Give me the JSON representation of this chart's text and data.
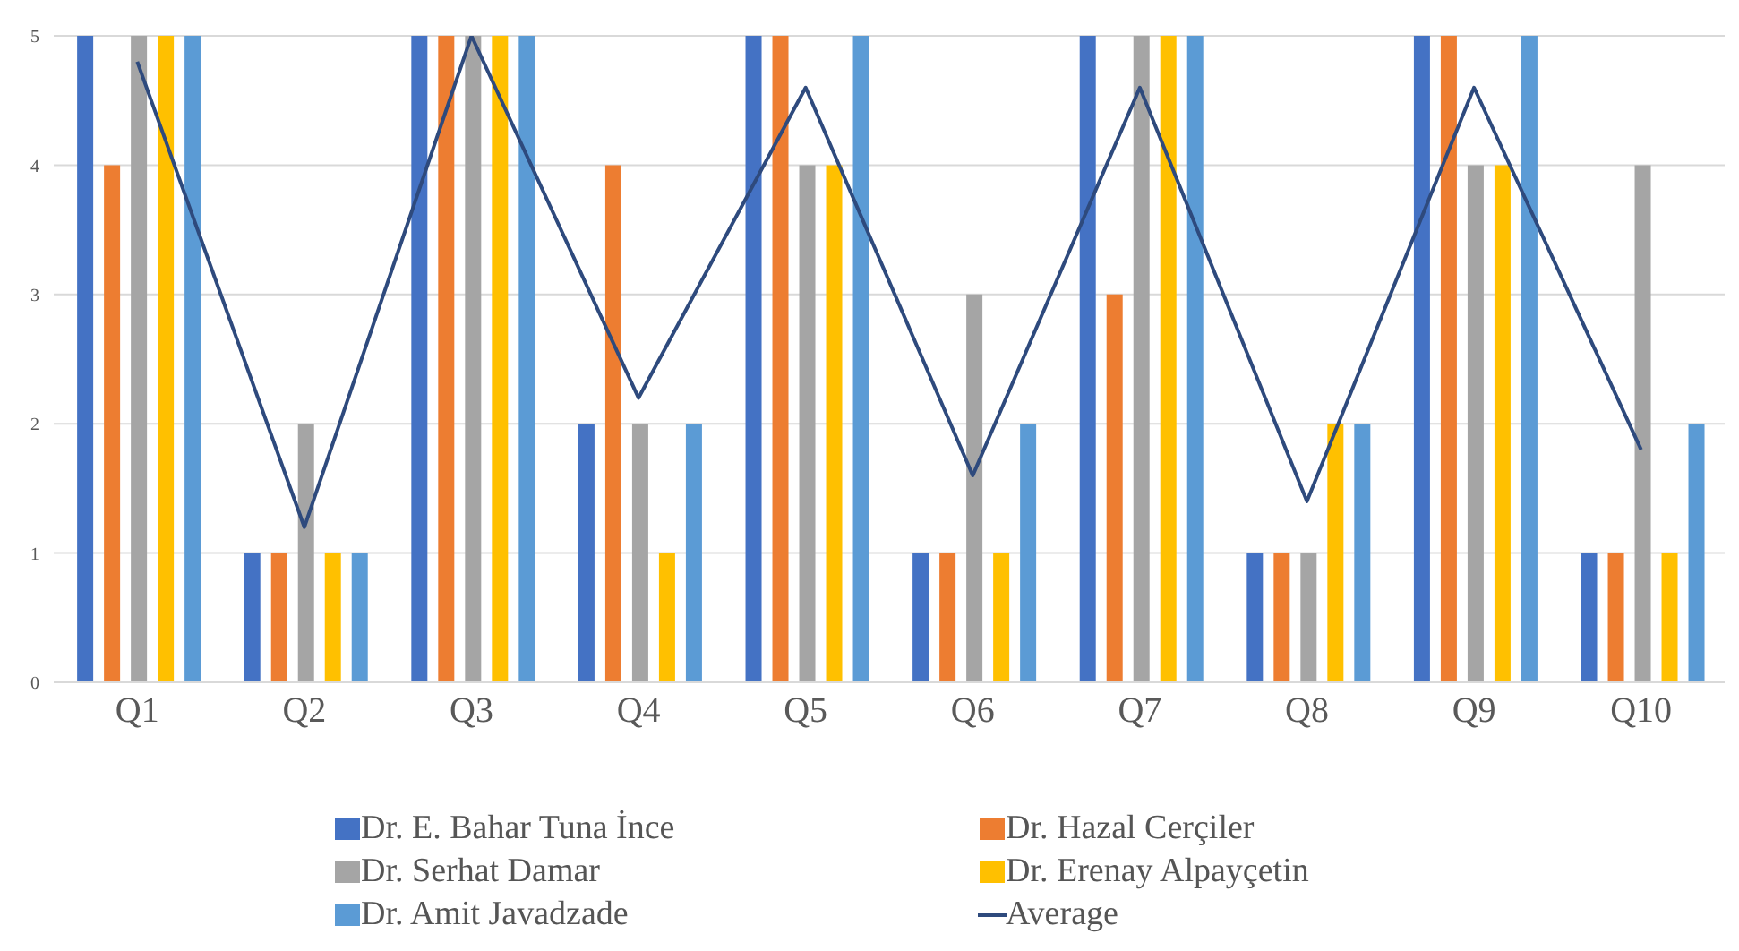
{
  "chart_data": {
    "type": "bar",
    "categories": [
      "Q1",
      "Q2",
      "Q3",
      "Q4",
      "Q5",
      "Q6",
      "Q7",
      "Q8",
      "Q9",
      "Q10"
    ],
    "series": [
      {
        "name": "Dr. E. Bahar Tuna İnce",
        "color": "#4472c4",
        "values": [
          5,
          1,
          5,
          2,
          5,
          1,
          5,
          1,
          5,
          1
        ]
      },
      {
        "name": "Dr. Hazal Cerçiler",
        "color": "#ed7d31",
        "values": [
          4,
          1,
          5,
          4,
          5,
          1,
          3,
          1,
          5,
          1
        ]
      },
      {
        "name": "Dr. Serhat Damar",
        "color": "#a5a5a5",
        "values": [
          5,
          2,
          5,
          2,
          4,
          3,
          5,
          1,
          4,
          4
        ]
      },
      {
        "name": "Dr. Erenay Alpayçetin",
        "color": "#ffc000",
        "values": [
          5,
          1,
          5,
          1,
          4,
          1,
          5,
          2,
          4,
          1
        ]
      },
      {
        "name": "Dr. Amit Javadzade",
        "color": "#5b9bd5",
        "values": [
          5,
          1,
          5,
          2,
          5,
          2,
          5,
          2,
          5,
          2
        ]
      },
      {
        "name": "Average",
        "type": "line",
        "color": "#2e4a7d",
        "values": [
          4.8,
          1.2,
          5,
          2.2,
          4.6,
          1.6,
          4.6,
          1.4,
          4.6,
          1.8
        ]
      }
    ],
    "ylim": [
      0,
      5
    ],
    "yticks": [
      0,
      1,
      2,
      3,
      4,
      5
    ],
    "grid": "y",
    "legend": "bottom",
    "marker": "none"
  }
}
